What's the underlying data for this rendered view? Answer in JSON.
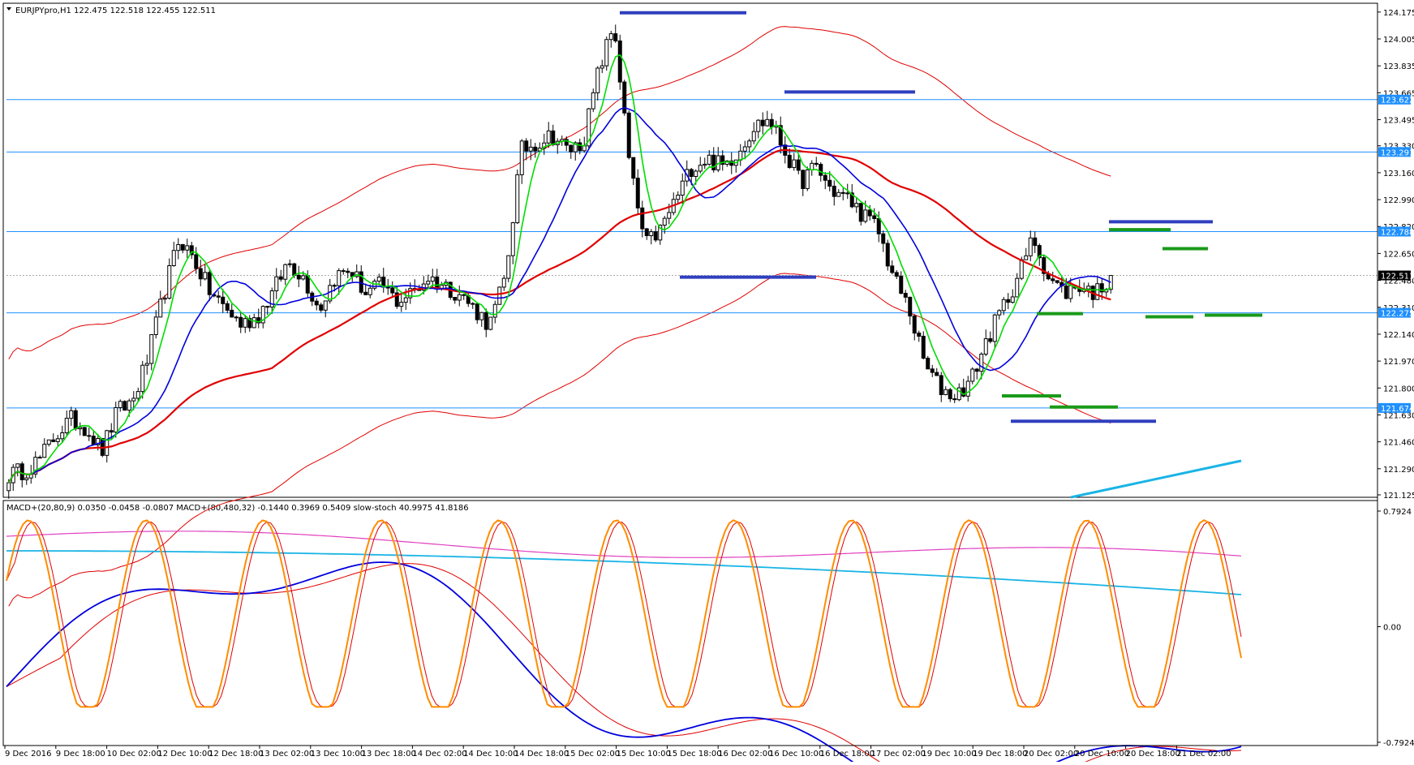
{
  "header": {
    "symbol_line": "EURJPYpro,H1  122.475 122.518 122.455 122.511",
    "indicator_line": "MACD+(20,80,9) 0.0350 -0.0458 -0.0807   MACD+(80,480,32) -0.1440 0.3969 0.5409   slow-stoch 40.9975 41.8186"
  },
  "colors": {
    "bull_candle": "#ffffff",
    "bear_candle": "#000000",
    "ma_fast": "#00dd00",
    "ma_mid": "#0000dd",
    "ma_slow": "#e00000",
    "envelope": "#e00000",
    "hline": "#1e90ff",
    "support_resistance_blue": "#2f3fbf",
    "support_resistance_green": "#1a9a1a",
    "trend_cyan": "#19b4e6",
    "macd_blue": "#0000dd",
    "macd_red": "#e00000",
    "macd_slow_magenta": "#e040c0",
    "macd_slow_cyan": "#19b4e6",
    "stoch_orange": "#ff8c00",
    "stoch_signal": "#e00000"
  },
  "chart_data": [
    {
      "type": "candlestick",
      "title": "EURJPYpro,H1",
      "ylim": [
        121.125,
        124.21
      ],
      "y_ticks": [
        "124.175",
        "124.005",
        "123.835",
        "123.665",
        "123.495",
        "123.330",
        "123.160",
        "122.990",
        "122.820",
        "122.650",
        "122.480",
        "122.310",
        "122.140",
        "121.970",
        "121.800",
        "121.630",
        "121.460",
        "121.290",
        "121.125"
      ],
      "x_labels": [
        "9 Dec 2016",
        "9 Dec 18:00",
        "10 Dec 02:00",
        "12 Dec 10:00",
        "12 Dec 18:00",
        "13 Dec 02:00",
        "13 Dec 10:00",
        "13 Dec 18:00",
        "14 Dec 02:00",
        "14 Dec 10:00",
        "14 Dec 18:00",
        "15 Dec 02:00",
        "15 Dec 10:00",
        "15 Dec 18:00",
        "16 Dec 02:00",
        "16 Dec 10:00",
        "16 Dec 18:00",
        "17 Dec 02:00",
        "19 Dec 10:00",
        "19 Dec 18:00",
        "20 Dec 02:00",
        "20 Dec 10:00",
        "20 Dec 18:00",
        "21 Dec 02:00"
      ],
      "current_price": "122.511",
      "horizontal_levels": [
        {
          "price": 123.622,
          "label": "123.622"
        },
        {
          "price": 123.291,
          "label": "123.291"
        },
        {
          "price": 122.788,
          "label": "122.788"
        },
        {
          "price": 122.275,
          "label": "122.275"
        },
        {
          "price": 121.674,
          "label": "121.674"
        }
      ],
      "candles_anchor": [
        121.25,
        121.28,
        121.35,
        121.5,
        121.6,
        121.55,
        121.4,
        121.65,
        121.72,
        122.0,
        122.4,
        122.75,
        122.6,
        122.4,
        122.3,
        122.2,
        122.25,
        122.4,
        122.6,
        122.5,
        122.3,
        122.5,
        122.55,
        122.4,
        122.45,
        122.35,
        122.4,
        122.5,
        122.45,
        122.4,
        122.3,
        122.2,
        122.5,
        123.3,
        123.35,
        123.4,
        123.3,
        123.35,
        123.8,
        124.1,
        123.2,
        122.7,
        122.8,
        123.0,
        123.2,
        123.25,
        123.2,
        123.3,
        123.45,
        123.5,
        123.3,
        123.1,
        123.2,
        123.05,
        123.0,
        122.9,
        122.8,
        122.5,
        122.3,
        121.95,
        121.8,
        121.75,
        121.85,
        122.1,
        122.3,
        122.5,
        122.75,
        122.5,
        122.4,
        122.45,
        122.4,
        122.5
      ],
      "overlays": [
        {
          "name": "",
          "color": "#00dd00",
          "values": []
        },
        {
          "name": "",
          "color": "#0000dd",
          "values": []
        },
        {
          "name": "",
          "color": "#e00000",
          "values": []
        }
      ],
      "drawn_levels": [
        {
          "color": "blue",
          "price": 124.17
        },
        {
          "color": "blue",
          "price": 123.67
        },
        {
          "color": "blue",
          "price": 122.5
        },
        {
          "color": "blue",
          "price": 122.85
        },
        {
          "color": "green",
          "price": 122.8
        },
        {
          "color": "green",
          "price": 122.68
        },
        {
          "color": "green",
          "price": 122.25
        },
        {
          "color": "green",
          "price": 122.26
        },
        {
          "color": "green",
          "price": 122.27
        },
        {
          "color": "green",
          "price": 121.75
        },
        {
          "color": "green",
          "price": 121.68
        },
        {
          "color": "blue",
          "price": 121.59
        }
      ]
    },
    {
      "type": "line",
      "title": "MACD+(20,80,9) / MACD+(80,480,32) / slow-stoch",
      "ylim": [
        -0.7924,
        0.7924
      ],
      "y_ticks": [
        "0.7924",
        "0.00",
        "-0.7924"
      ],
      "series": [
        {
          "name": "MACD+(20,80,9)",
          "color": "#0000dd",
          "values": []
        },
        {
          "name": "",
          "color": "#e00000",
          "values": []
        },
        {
          "name": "MACD+(80,480,32)",
          "color": "#19b4e6",
          "values": []
        },
        {
          "name": "",
          "color": "#e040c0",
          "values": []
        },
        {
          "name": "slow-stoch",
          "color": "#ff8c00",
          "values": []
        }
      ]
    }
  ]
}
